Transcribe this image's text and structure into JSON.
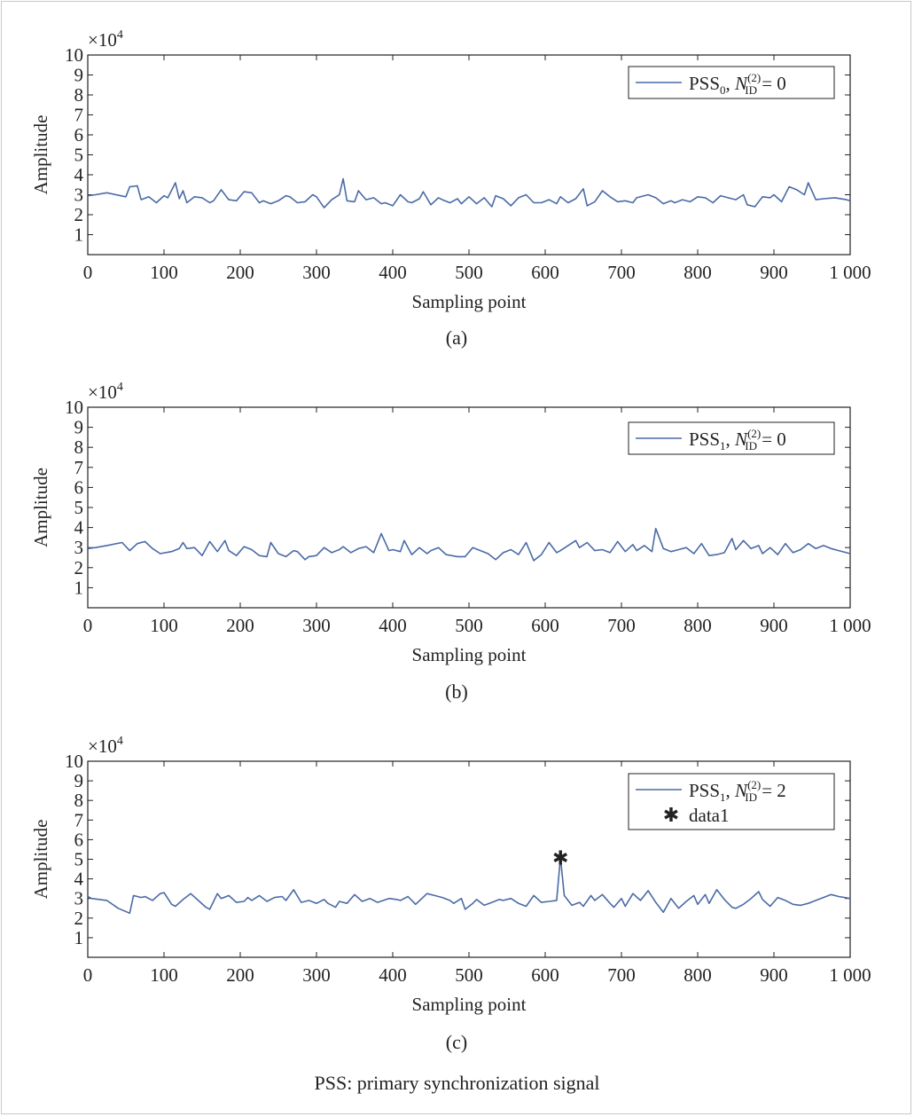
{
  "footer": "PSS: primary synchronization signal",
  "chart_data": [
    {
      "type": "line",
      "subplot_label": "(a)",
      "xlabel": "Sampling point",
      "ylabel": "Amplitude",
      "exponent_label": "×10",
      "exponent_power": "4",
      "xlim": [
        0,
        1000
      ],
      "ylim": [
        0,
        10
      ],
      "xticks": [
        "0",
        "100",
        "200",
        "300",
        "400",
        "500",
        "600",
        "700",
        "800",
        "900",
        "1 000"
      ],
      "yticks": [
        "1",
        "2",
        "3",
        "4",
        "5",
        "6",
        "7",
        "8",
        "9",
        "10"
      ],
      "legend_position": "top-right",
      "series": [
        {
          "legend_main": "PSS",
          "legend_sub": "0",
          "legend_var": "N",
          "legend_var_sup": "(2)",
          "legend_var_sub": "ID",
          "legend_value": " = 0",
          "color": "#4a6aa6",
          "x": [
            0,
            10,
            25,
            50,
            55,
            65,
            70,
            80,
            90,
            100,
            105,
            115,
            120,
            125,
            130,
            140,
            150,
            160,
            165,
            175,
            185,
            195,
            205,
            215,
            225,
            230,
            240,
            250,
            260,
            265,
            275,
            285,
            295,
            300,
            310,
            320,
            330,
            335,
            340,
            350,
            355,
            365,
            375,
            385,
            390,
            400,
            410,
            420,
            425,
            435,
            440,
            450,
            460,
            465,
            475,
            485,
            490,
            500,
            510,
            520,
            530,
            535,
            545,
            555,
            565,
            575,
            585,
            595,
            605,
            615,
            620,
            630,
            640,
            650,
            655,
            665,
            675,
            685,
            695,
            705,
            715,
            720,
            735,
            745,
            755,
            765,
            770,
            780,
            790,
            800,
            810,
            820,
            830,
            840,
            850,
            860,
            865,
            875,
            885,
            895,
            900,
            910,
            920,
            930,
            940,
            945,
            955,
            965,
            980,
            995,
            1000
          ],
          "y": [
            2.95,
            3.0,
            3.1,
            2.9,
            3.4,
            3.45,
            2.75,
            2.9,
            2.6,
            2.95,
            2.85,
            3.6,
            2.8,
            3.2,
            2.6,
            2.9,
            2.85,
            2.6,
            2.7,
            3.25,
            2.75,
            2.7,
            3.15,
            3.1,
            2.6,
            2.7,
            2.55,
            2.7,
            2.95,
            2.9,
            2.6,
            2.65,
            3.0,
            2.9,
            2.35,
            2.75,
            3.0,
            3.8,
            2.7,
            2.65,
            3.2,
            2.75,
            2.85,
            2.55,
            2.6,
            2.45,
            3.0,
            2.65,
            2.6,
            2.8,
            3.15,
            2.5,
            2.85,
            2.75,
            2.6,
            2.8,
            2.55,
            2.9,
            2.55,
            2.85,
            2.4,
            2.95,
            2.8,
            2.45,
            2.85,
            3.0,
            2.6,
            2.6,
            2.75,
            2.55,
            2.9,
            2.6,
            2.8,
            3.3,
            2.45,
            2.65,
            3.2,
            2.9,
            2.65,
            2.7,
            2.6,
            2.85,
            3.0,
            2.85,
            2.55,
            2.7,
            2.6,
            2.75,
            2.65,
            2.9,
            2.85,
            2.6,
            2.95,
            2.85,
            2.75,
            3.0,
            2.5,
            2.4,
            2.9,
            2.85,
            3.0,
            2.65,
            3.4,
            3.25,
            3.0,
            3.6,
            2.75,
            2.8,
            2.85,
            2.75,
            2.7
          ]
        }
      ]
    },
    {
      "type": "line",
      "subplot_label": "(b)",
      "xlabel": "Sampling point",
      "ylabel": "Amplitude",
      "exponent_label": "×10",
      "exponent_power": "4",
      "xlim": [
        0,
        1000
      ],
      "ylim": [
        0,
        10
      ],
      "xticks": [
        "0",
        "100",
        "200",
        "300",
        "400",
        "500",
        "600",
        "700",
        "800",
        "900",
        "1 000"
      ],
      "yticks": [
        "1",
        "2",
        "3",
        "4",
        "5",
        "6",
        "7",
        "8",
        "9",
        "10"
      ],
      "legend_position": "top-right",
      "series": [
        {
          "legend_main": "PSS",
          "legend_sub": "1",
          "legend_var": "N",
          "legend_var_sup": "(2)",
          "legend_var_sub": "ID",
          "legend_value": " = 0",
          "color": "#4a6aa6",
          "x": [
            0,
            10,
            25,
            45,
            55,
            65,
            75,
            85,
            95,
            110,
            120,
            125,
            130,
            140,
            150,
            160,
            170,
            180,
            185,
            195,
            205,
            215,
            225,
            235,
            240,
            250,
            260,
            270,
            275,
            285,
            290,
            300,
            310,
            320,
            330,
            335,
            345,
            355,
            365,
            375,
            385,
            395,
            400,
            410,
            415,
            425,
            435,
            445,
            450,
            460,
            470,
            485,
            495,
            505,
            515,
            525,
            535,
            545,
            555,
            565,
            575,
            585,
            595,
            605,
            615,
            620,
            630,
            640,
            645,
            655,
            665,
            675,
            685,
            695,
            705,
            715,
            720,
            730,
            740,
            745,
            755,
            765,
            775,
            785,
            795,
            805,
            815,
            825,
            835,
            845,
            850,
            860,
            870,
            880,
            885,
            895,
            905,
            915,
            925,
            935,
            945,
            955,
            965,
            975,
            985,
            1000
          ],
          "y": [
            2.95,
            3.0,
            3.1,
            3.25,
            2.85,
            3.2,
            3.3,
            2.95,
            2.7,
            2.8,
            2.95,
            3.25,
            2.95,
            3.0,
            2.6,
            3.3,
            2.8,
            3.35,
            2.85,
            2.6,
            3.05,
            2.9,
            2.6,
            2.55,
            3.25,
            2.7,
            2.55,
            2.85,
            2.8,
            2.4,
            2.55,
            2.6,
            3.0,
            2.75,
            2.9,
            3.05,
            2.75,
            2.95,
            3.05,
            2.75,
            3.7,
            2.85,
            2.9,
            2.8,
            3.35,
            2.65,
            3.0,
            2.7,
            2.85,
            3.0,
            2.65,
            2.55,
            2.55,
            3.0,
            2.85,
            2.7,
            2.4,
            2.75,
            2.9,
            2.65,
            3.25,
            2.35,
            2.65,
            3.25,
            2.75,
            2.85,
            3.1,
            3.35,
            3.0,
            3.25,
            2.85,
            2.9,
            2.75,
            3.3,
            2.8,
            3.15,
            2.85,
            3.1,
            2.8,
            3.95,
            2.95,
            2.8,
            2.9,
            3.0,
            2.7,
            3.2,
            2.6,
            2.65,
            2.75,
            3.45,
            2.9,
            3.35,
            2.95,
            3.1,
            2.7,
            3.0,
            2.65,
            3.2,
            2.75,
            2.9,
            3.2,
            2.95,
            3.1,
            2.95,
            2.85,
            2.7
          ]
        }
      ]
    },
    {
      "type": "line",
      "subplot_label": "(c)",
      "xlabel": "Sampling point",
      "ylabel": "Amplitude",
      "exponent_label": "×10",
      "exponent_power": "4",
      "xlim": [
        0,
        1000
      ],
      "ylim": [
        0,
        10
      ],
      "xticks": [
        "0",
        "100",
        "200",
        "300",
        "400",
        "500",
        "600",
        "700",
        "800",
        "900",
        "1 000"
      ],
      "yticks": [
        "1",
        "2",
        "3",
        "4",
        "5",
        "6",
        "7",
        "8",
        "9",
        "10"
      ],
      "legend_position": "top-right",
      "series": [
        {
          "legend_main": "PSS",
          "legend_sub": "1",
          "legend_var": "N",
          "legend_var_sup": "(2)",
          "legend_var_sub": "ID",
          "legend_value": " = 2",
          "color": "#4a6aa6",
          "x": [
            0,
            5,
            25,
            40,
            55,
            60,
            70,
            75,
            85,
            95,
            100,
            110,
            115,
            125,
            135,
            145,
            155,
            160,
            170,
            175,
            185,
            195,
            205,
            210,
            215,
            225,
            235,
            245,
            255,
            260,
            270,
            280,
            290,
            300,
            310,
            315,
            325,
            330,
            340,
            350,
            360,
            370,
            380,
            395,
            405,
            410,
            420,
            430,
            445,
            455,
            465,
            475,
            480,
            490,
            495,
            505,
            510,
            520,
            530,
            540,
            545,
            555,
            565,
            575,
            585,
            595,
            605,
            615,
            620,
            625,
            635,
            645,
            650,
            660,
            665,
            675,
            685,
            690,
            700,
            705,
            715,
            725,
            735,
            745,
            755,
            765,
            775,
            785,
            795,
            800,
            810,
            815,
            825,
            835,
            845,
            850,
            860,
            870,
            880,
            885,
            895,
            905,
            915,
            925,
            935,
            945,
            955,
            975,
            985,
            1000
          ],
          "y": [
            3.1,
            3.0,
            2.9,
            2.5,
            2.25,
            3.15,
            3.05,
            3.1,
            2.9,
            3.25,
            3.3,
            2.7,
            2.6,
            2.95,
            3.25,
            2.9,
            2.55,
            2.45,
            3.25,
            3.0,
            3.15,
            2.8,
            2.85,
            3.05,
            2.9,
            3.15,
            2.85,
            3.05,
            3.1,
            2.9,
            3.45,
            2.8,
            2.9,
            2.75,
            2.95,
            2.75,
            2.55,
            2.85,
            2.75,
            3.2,
            2.85,
            3.0,
            2.8,
            3.0,
            2.95,
            2.9,
            3.1,
            2.7,
            3.25,
            3.15,
            3.05,
            2.9,
            2.75,
            3.0,
            2.45,
            2.75,
            2.95,
            2.65,
            2.8,
            2.95,
            2.9,
            3.0,
            2.75,
            2.6,
            3.15,
            2.8,
            2.85,
            2.9,
            5.1,
            3.15,
            2.65,
            2.8,
            2.6,
            3.15,
            2.9,
            3.2,
            2.75,
            2.55,
            3.0,
            2.6,
            3.25,
            2.9,
            3.4,
            2.8,
            2.3,
            3.0,
            2.5,
            2.85,
            3.15,
            2.7,
            3.2,
            2.75,
            3.45,
            2.95,
            2.55,
            2.5,
            2.7,
            3.0,
            3.35,
            2.95,
            2.6,
            3.05,
            2.9,
            2.7,
            2.65,
            2.75,
            2.9,
            3.2,
            3.1,
            3.0
          ]
        }
      ],
      "marker_point": {
        "x": 620,
        "y": 5.1,
        "symbol": "✱",
        "legend": "data1"
      }
    }
  ]
}
